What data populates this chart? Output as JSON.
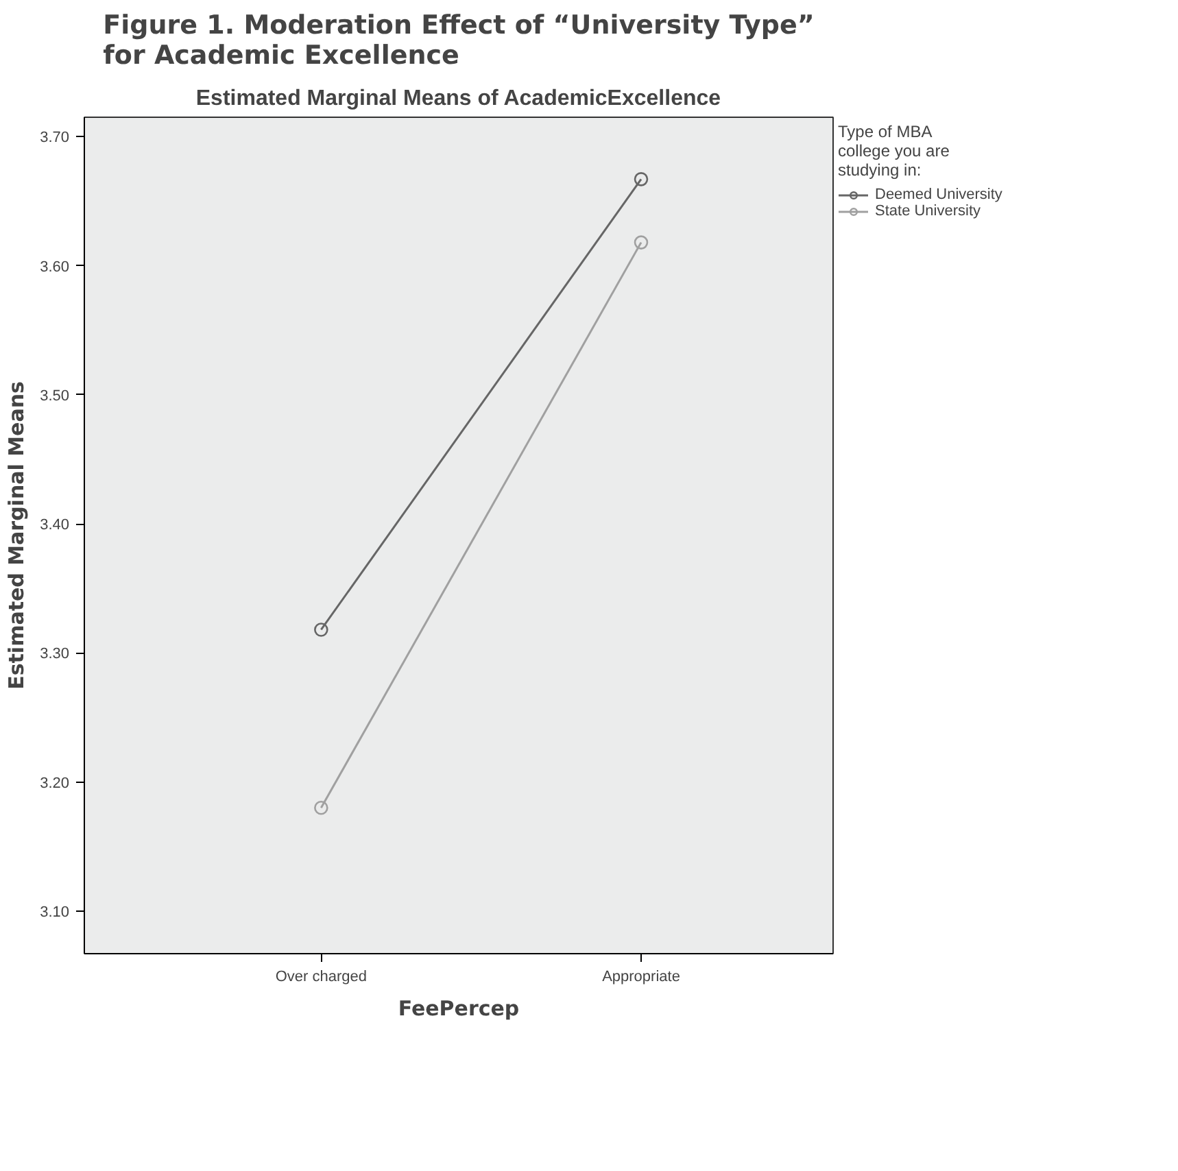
{
  "chart_data": {
    "type": "line",
    "title": "Figure 1. Moderation Effect of “University Type”\nfor Academic Excellence",
    "subtitle": "Estimated Marginal Means of AcademicExcellence",
    "xlabel": "FeePercep",
    "ylabel": "Estimated Marginal Means",
    "legend_title": "Type of MBA\ncollege you are\nstudying in:",
    "categories": [
      "Over charged",
      "Appropriate"
    ],
    "series": [
      {
        "name": "Deemed University",
        "color": "#666666",
        "values": [
          3.318,
          3.667
        ]
      },
      {
        "name": "State University",
        "color": "#a0a0a0",
        "values": [
          3.18,
          3.618
        ]
      }
    ],
    "ylim": [
      3.067,
      3.715
    ],
    "yticks": [
      {
        "value": 3.1,
        "label": "3.10"
      },
      {
        "value": 3.2,
        "label": "3.20"
      },
      {
        "value": 3.3,
        "label": "3.30"
      },
      {
        "value": 3.4,
        "label": "3.40"
      },
      {
        "value": 3.5,
        "label": "3.50"
      },
      {
        "value": 3.6,
        "label": "3.60"
      },
      {
        "value": 3.7,
        "label": "3.70"
      }
    ],
    "grid": false,
    "legend": "right",
    "marker": "circle",
    "line_style": "solid"
  }
}
